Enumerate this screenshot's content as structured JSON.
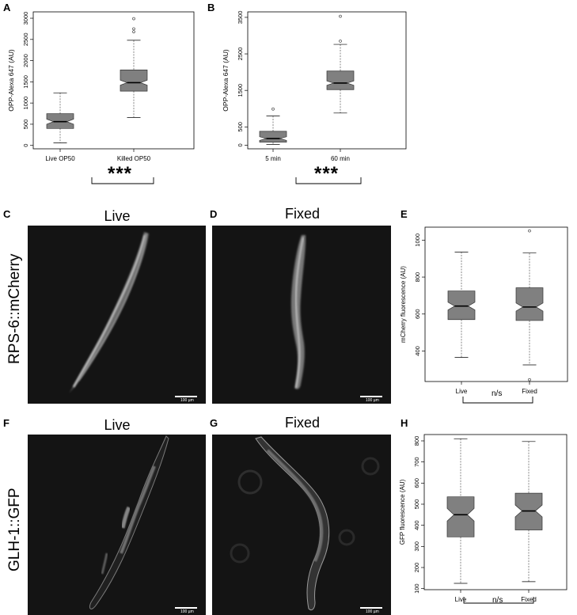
{
  "panels": {
    "A": "A",
    "B": "B",
    "C": "C",
    "D": "D",
    "E": "E",
    "F": "F",
    "G": "G",
    "H": "H"
  },
  "row_labels": {
    "row1": "RPS-6::mCherry",
    "row2": "GLH-1::GFP"
  },
  "conditions": {
    "c": "Live",
    "d": "Fixed",
    "f": "Live",
    "g": "Fixed"
  },
  "scalebar_label": "100 µm",
  "significance": {
    "A": "***",
    "B": "***",
    "E": "n/s",
    "H": "n/s"
  },
  "colors": {
    "box_fill": "#808080",
    "micro_bg": "#141414"
  },
  "chart_data": [
    {
      "id": "A",
      "type": "boxplot",
      "ylabel": "OPP-Alexa 647 (AU)",
      "ylim": [
        -80,
        3150
      ],
      "yticks": [
        0,
        500,
        1000,
        1500,
        2000,
        2500,
        3000
      ],
      "categories": [
        "Live OP50",
        "Killed OP50"
      ],
      "boxes": [
        {
          "name": "Live OP50",
          "whisker_low": 60,
          "q1": 400,
          "median": 560,
          "q3": 750,
          "whisker_high": 1240,
          "notch_low": 500,
          "notch_high": 620,
          "outliers": []
        },
        {
          "name": "Killed OP50",
          "whisker_low": 660,
          "q1": 1280,
          "median": 1480,
          "q3": 1780,
          "whisker_high": 2480,
          "notch_low": 1420,
          "notch_high": 1540,
          "outliers": [
            2680,
            2750,
            2990
          ]
        }
      ]
    },
    {
      "id": "B",
      "type": "boxplot",
      "ylabel": "OPP-Alexa 647 (AU)",
      "ylim": [
        -100,
        3650
      ],
      "yticks": [
        0,
        500,
        1500,
        2500,
        3500
      ],
      "categories": [
        "5 min",
        "60 min"
      ],
      "boxes": [
        {
          "name": "5 min",
          "whisker_low": 20,
          "q1": 80,
          "median": 180,
          "q3": 380,
          "whisker_high": 800,
          "notch_low": 130,
          "notch_high": 230,
          "outliers": [
            990
          ]
        },
        {
          "name": "60 min",
          "whisker_low": 880,
          "q1": 1520,
          "median": 1700,
          "q3": 2030,
          "whisker_high": 2760,
          "notch_low": 1640,
          "notch_high": 1760,
          "outliers": [
            2850,
            3530
          ]
        }
      ]
    },
    {
      "id": "E",
      "type": "boxplot",
      "ylabel": "mCherry fluorescence (AU)",
      "ylim": [
        235,
        1070
      ],
      "yticks": [
        400,
        600,
        800,
        1000
      ],
      "categories": [
        "Live",
        "Fixed"
      ],
      "boxes": [
        {
          "name": "Live",
          "whisker_low": 365,
          "q1": 570,
          "median": 643,
          "q3": 725,
          "whisker_high": 935,
          "notch_low": 622,
          "notch_high": 664,
          "outliers": []
        },
        {
          "name": "Fixed",
          "whisker_low": 325,
          "q1": 565,
          "median": 638,
          "q3": 742,
          "whisker_high": 930,
          "notch_low": 616,
          "notch_high": 660,
          "outliers": [
            245,
            1050
          ]
        }
      ]
    },
    {
      "id": "H",
      "type": "boxplot",
      "ylabel": "GFP fluorescence (AU)",
      "ylim": [
        95,
        830
      ],
      "yticks": [
        100,
        200,
        300,
        400,
        500,
        600,
        700,
        800
      ],
      "categories": [
        "Live",
        "Fixed"
      ],
      "boxes": [
        {
          "name": "Live",
          "whisker_low": 125,
          "q1": 345,
          "median": 450,
          "q3": 535,
          "whisker_high": 810,
          "notch_low": 420,
          "notch_high": 480,
          "outliers": []
        },
        {
          "name": "Fixed",
          "whisker_low": 133,
          "q1": 378,
          "median": 468,
          "q3": 552,
          "whisker_high": 797,
          "notch_low": 440,
          "notch_high": 496,
          "outliers": []
        }
      ]
    }
  ]
}
